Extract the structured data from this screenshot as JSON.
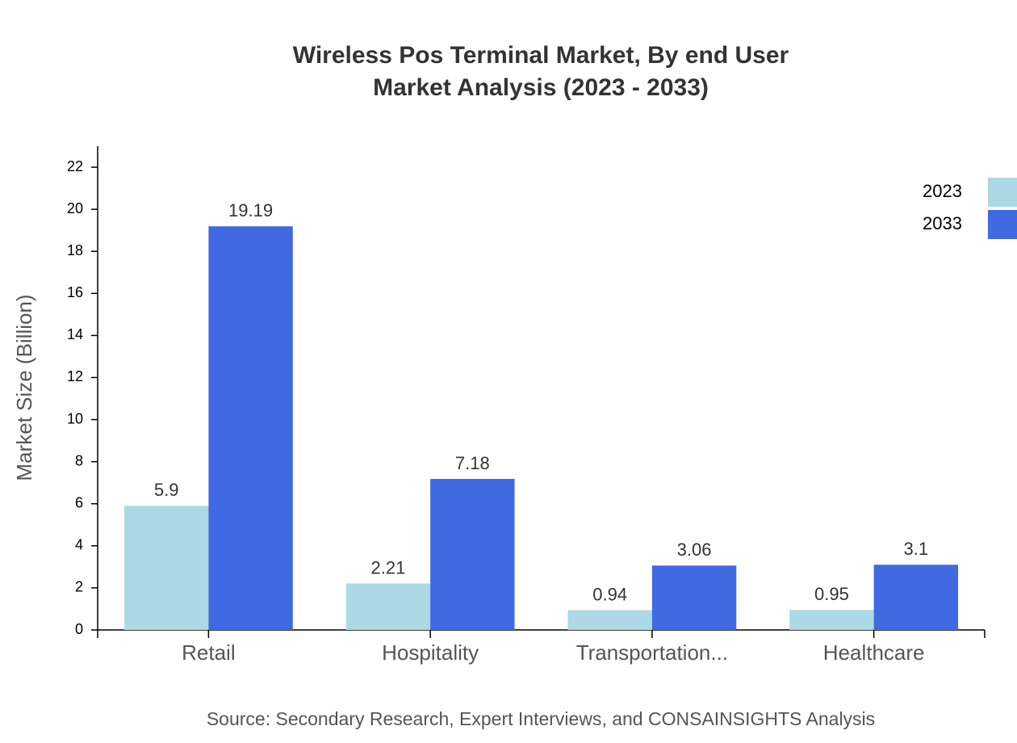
{
  "chart_data": {
    "type": "bar",
    "title": "Wireless Pos Terminal Market, By end User",
    "subtitle": "Market Analysis (2023 - 2033)",
    "y_label": "Market Size (Billion)",
    "source": "Source: Secondary Research, Expert Interviews, and CONSAINSIGHTS Analysis",
    "categories": [
      "Retail",
      "Hospitality",
      "Transportation...",
      "Healthcare"
    ],
    "series": [
      {
        "name": "2023",
        "color": "#add8e6",
        "values": [
          5.9,
          2.21,
          0.94,
          0.95
        ]
      },
      {
        "name": "2033",
        "color": "#4169e1",
        "values": [
          19.19,
          7.18,
          3.06,
          3.1
        ]
      }
    ],
    "ylim": [
      0,
      23
    ],
    "yticks": [
      0,
      2,
      4,
      6,
      8,
      10,
      12,
      14,
      16,
      18,
      20,
      22
    ],
    "legend": "top-right",
    "grid": false
  }
}
